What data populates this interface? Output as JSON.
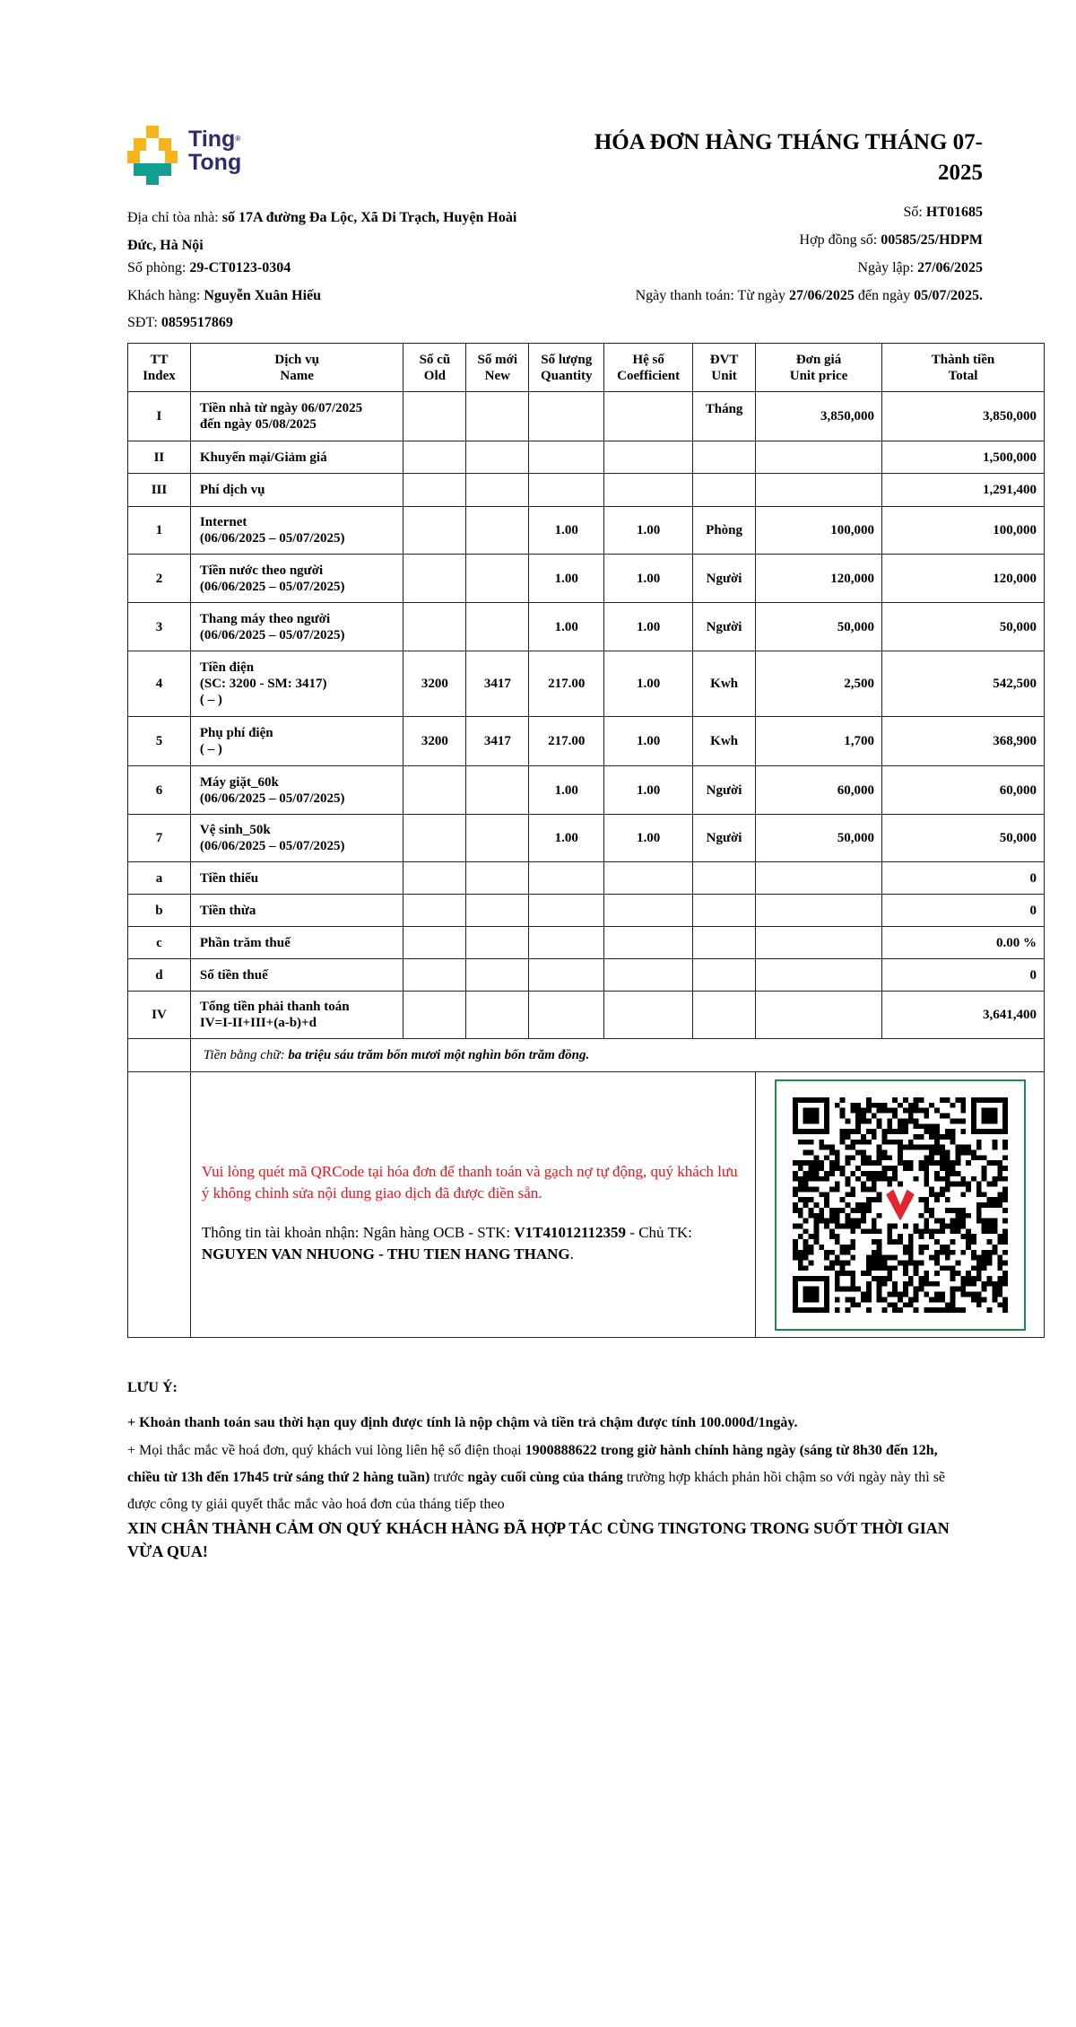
{
  "logo": {
    "line1": "Ting",
    "line2": "Tong",
    "mark": "®",
    "colors": {
      "yellow": "#f7b51b",
      "teal": "#129e91",
      "navy": "#2d2d6e"
    }
  },
  "title": "HÓA ĐƠN HÀNG THÁNG THÁNG 07-2025",
  "info": {
    "address_label": "Địa chỉ tòa nhà: ",
    "address_line1": "số 17A đường Đa Lộc, Xã Di Trạch, Huyện Hoài",
    "address_line2": "Đức, Hà Nội",
    "room_label": "Số phòng: ",
    "room": "29-CT0123-0304",
    "customer_label": "Khách hàng: ",
    "customer": "Nguyễn Xuân Hiếu",
    "phone_label": "SĐT: ",
    "phone": "0859517869",
    "invoice_no_label": "Số: ",
    "invoice_no": "HT01685",
    "contract_label": "Hợp đồng số: ",
    "contract": "00585/25/HDPM",
    "date_label": "Ngày lập: ",
    "date": "27/06/2025",
    "pay_label": "Ngày thanh toán: Từ ngày ",
    "pay_from": "27/06/2025",
    "pay_mid": " đến ngày ",
    "pay_to": "05/07/2025."
  },
  "table": {
    "headers": [
      [
        "TT",
        "Index"
      ],
      [
        "Dịch vụ",
        "Name"
      ],
      [
        "Số cũ",
        "Old"
      ],
      [
        "Số mới",
        "New"
      ],
      [
        "Số lượng",
        "Quantity"
      ],
      [
        "Hệ số",
        "Coefficient"
      ],
      [
        "ĐVT",
        "Unit"
      ],
      [
        "Đơn giá",
        "Unit price"
      ],
      [
        "Thành tiền",
        "Total"
      ]
    ],
    "rows": [
      {
        "index": "I",
        "name": [
          "Tiền nhà từ ngày 06/07/2025",
          "đến ngày 05/08/2025"
        ],
        "old": "",
        "new": "",
        "qty": "",
        "coef": "",
        "unit": "Tháng",
        "price": "3,850,000",
        "total": "3,850,000"
      },
      {
        "index": "II",
        "name": [
          "Khuyến mại/Giảm giá"
        ],
        "old": "",
        "new": "",
        "qty": "",
        "coef": "",
        "unit": "",
        "price": "",
        "total": "1,500,000"
      },
      {
        "index": "III",
        "name": [
          "Phí dịch vụ"
        ],
        "old": "",
        "new": "",
        "qty": "",
        "coef": "",
        "unit": "",
        "price": "",
        "total": "1,291,400"
      },
      {
        "index": "1",
        "name": [
          "Internet",
          "(06/06/2025 – 05/07/2025)"
        ],
        "old": "",
        "new": "",
        "qty": "1.00",
        "coef": "1.00",
        "unit": "Phòng",
        "price": "100,000",
        "total": "100,000"
      },
      {
        "index": "2",
        "name": [
          "Tiền nước theo người",
          "(06/06/2025 – 05/07/2025)"
        ],
        "old": "",
        "new": "",
        "qty": "1.00",
        "coef": "1.00",
        "unit": "Người",
        "price": "120,000",
        "total": "120,000"
      },
      {
        "index": "3",
        "name": [
          "Thang máy theo người",
          "(06/06/2025 – 05/07/2025)"
        ],
        "old": "",
        "new": "",
        "qty": "1.00",
        "coef": "1.00",
        "unit": "Người",
        "price": "50,000",
        "total": "50,000"
      },
      {
        "index": "4",
        "name": [
          "Tiền điện",
          "(SC: 3200 - SM: 3417)",
          "( – )"
        ],
        "old": "3200",
        "new": "3417",
        "qty": "217.00",
        "coef": "1.00",
        "unit": "Kwh",
        "price": "2,500",
        "total": "542,500"
      },
      {
        "index": "5",
        "name": [
          "Phụ phí điện",
          "( – )"
        ],
        "old": "3200",
        "new": "3417",
        "qty": "217.00",
        "coef": "1.00",
        "unit": "Kwh",
        "price": "1,700",
        "total": "368,900"
      },
      {
        "index": "6",
        "name": [
          "Máy giặt_60k",
          "(06/06/2025 – 05/07/2025)"
        ],
        "old": "",
        "new": "",
        "qty": "1.00",
        "coef": "1.00",
        "unit": "Người",
        "price": "60,000",
        "total": "60,000"
      },
      {
        "index": "7",
        "name": [
          "Vệ sinh_50k",
          "(06/06/2025 – 05/07/2025)"
        ],
        "old": "",
        "new": "",
        "qty": "1.00",
        "coef": "1.00",
        "unit": "Người",
        "price": "50,000",
        "total": "50,000"
      },
      {
        "index": "a",
        "name": [
          "Tiền thiếu"
        ],
        "old": "",
        "new": "",
        "qty": "",
        "coef": "",
        "unit": "",
        "price": "",
        "total": "0"
      },
      {
        "index": "b",
        "name": [
          "Tiền thừa"
        ],
        "old": "",
        "new": "",
        "qty": "",
        "coef": "",
        "unit": "",
        "price": "",
        "total": "0"
      },
      {
        "index": "c",
        "name": [
          "Phần trăm thuế"
        ],
        "old": "",
        "new": "",
        "qty": "",
        "coef": "",
        "unit": "",
        "price": "",
        "total": "0.00 %"
      },
      {
        "index": "d",
        "name": [
          "Số tiền thuế"
        ],
        "old": "",
        "new": "",
        "qty": "",
        "coef": "",
        "unit": "",
        "price": "",
        "total": "0"
      },
      {
        "index": "IV",
        "name": [
          "Tổng tiền phải thanh toán",
          "IV=I-II+III+(a-b)+d"
        ],
        "old": "",
        "new": "",
        "qty": "",
        "coef": "",
        "unit": "",
        "price": "",
        "total": "3,641,400"
      }
    ],
    "words_label": "Tiền bằng chữ: ",
    "words": "ba triệu sáu trăm bốn mươi một nghìn bốn trăm đồng.",
    "qr_notice": "Vui lòng quét mã QRCode tại hóa đơn để thanh toán và gạch nợ tự động, quý khách lưu ý không chỉnh sửa nội dung giao dịch đã được điền sẵn.",
    "account_label": "Thông tin tài khoản nhận: Ngân hàng OCB - STK: ",
    "account_no": "V1T41012112359",
    "owner_label": " - Chủ TK: ",
    "owner": "NGUYEN VAN NHUONG - THU TIEN HANG THANG",
    "owner_end": ".",
    "qr_icon": "qr-code-icon"
  },
  "notes": {
    "heading": "LƯU Ý:",
    "note1": "+ Khoản thanh toán sau thời hạn quy định được tính là nộp chậm và tiền trả chậm được tính 100.000đ/1ngày.",
    "note2_a": "+ Mọi thắc mắc về hoá đơn, quý khách vui lòng liên hệ số điện thoại ",
    "note2_b": "1900888622 trong giờ hành chính hàng ngày (sáng từ 8h30 đến 12h, chiều từ 13h đến 17h45 trừ sáng thứ 2 hàng tuần)",
    "note2_c": " trước ",
    "note2_d": "ngày cuối cùng của tháng",
    "note2_e": " trường hợp khách phản hồi chậm so với ngày này thì sẽ được công ty giải quyết thắc mắc vào hoá đơn của tháng tiếp theo",
    "thanks": "XIN CHÂN THÀNH CẢM ƠN QUÝ KHÁCH HÀNG ĐÃ HỢP TÁC CÙNG TINGTONG TRONG SUỐT THỜI GIAN VỪA QUA!"
  }
}
